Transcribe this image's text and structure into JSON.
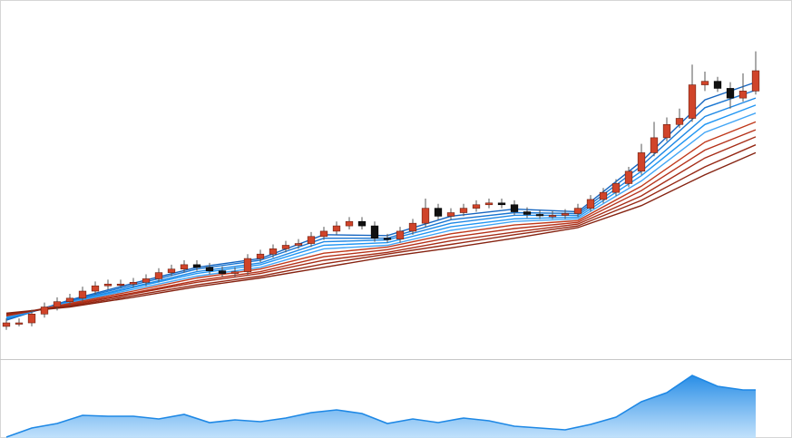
{
  "chart_data": [
    {
      "type": "candlestick",
      "xlim": [
        0,
        59
      ],
      "ylim": [
        0,
        395
      ],
      "up_color": "#d0442a",
      "down_color": "#111111",
      "open": [
        33,
        37,
        37,
        47,
        55,
        61,
        65,
        73,
        79,
        81,
        81,
        83,
        87,
        94,
        98,
        103,
        100,
        96,
        93,
        95,
        110,
        115,
        121,
        125,
        127,
        135,
        141,
        147,
        152,
        147,
        133,
        132,
        141,
        150,
        167,
        158,
        162,
        167,
        171,
        173,
        171,
        163,
        160,
        159,
        159,
        161,
        167,
        177,
        185,
        195,
        209,
        230,
        247,
        262,
        269,
        307,
        311,
        303,
        292,
        300
      ],
      "high": [
        42,
        42,
        52,
        60,
        66,
        70,
        78,
        84,
        86,
        86,
        88,
        92,
        99,
        103,
        108,
        108,
        105,
        101,
        100,
        115,
        120,
        126,
        130,
        132,
        140,
        146,
        152,
        157,
        157,
        152,
        138,
        146,
        155,
        178,
        172,
        167,
        172,
        176,
        178,
        178,
        176,
        168,
        165,
        164,
        166,
        172,
        182,
        190,
        200,
        214,
        240,
        265,
        270,
        280,
        330,
        322,
        316,
        310,
        320,
        345
      ],
      "low": [
        29,
        33,
        33,
        43,
        51,
        57,
        61,
        69,
        75,
        77,
        77,
        79,
        83,
        90,
        94,
        96,
        92,
        89,
        89,
        91,
        106,
        111,
        117,
        121,
        123,
        131,
        137,
        143,
        143,
        129,
        128,
        128,
        137,
        146,
        154,
        154,
        158,
        163,
        167,
        167,
        159,
        156,
        155,
        155,
        155,
        157,
        163,
        173,
        181,
        191,
        205,
        226,
        243,
        258,
        265,
        300,
        299,
        280,
        288,
        296
      ],
      "close": [
        37,
        37,
        47,
        55,
        61,
        65,
        73,
        79,
        81,
        81,
        83,
        87,
        94,
        98,
        103,
        100,
        96,
        93,
        95,
        110,
        115,
        121,
        125,
        127,
        135,
        141,
        147,
        152,
        147,
        133,
        132,
        141,
        150,
        167,
        158,
        162,
        167,
        171,
        173,
        171,
        163,
        160,
        159,
        159,
        161,
        167,
        177,
        185,
        195,
        209,
        230,
        247,
        262,
        269,
        307,
        311,
        303,
        292,
        300,
        323
      ],
      "series": [
        {
          "color": "#1565c0",
          "x": [
            0,
            5,
            10,
            15,
            20,
            25,
            30,
            35,
            40,
            45,
            50,
            55,
            59
          ],
          "values": [
            40,
            63,
            82,
            100,
            110,
            137,
            136,
            158,
            166,
            163,
            220,
            290,
            310
          ]
        },
        {
          "color": "#1976d2",
          "x": [
            0,
            5,
            10,
            15,
            20,
            25,
            30,
            35,
            40,
            45,
            50,
            55,
            59
          ],
          "values": [
            41,
            62,
            80,
            98,
            108,
            133,
            133,
            154,
            162,
            161,
            215,
            281,
            301
          ]
        },
        {
          "color": "#1e88e5",
          "x": [
            0,
            5,
            10,
            15,
            20,
            25,
            30,
            35,
            40,
            45,
            50,
            55,
            59
          ],
          "values": [
            42,
            61,
            78,
            95,
            105,
            129,
            131,
            150,
            159,
            159,
            209,
            271,
            292
          ]
        },
        {
          "color": "#2196f3",
          "x": [
            0,
            5,
            10,
            15,
            20,
            25,
            30,
            35,
            40,
            45,
            50,
            55,
            59
          ],
          "values": [
            43,
            60,
            77,
            93,
            103,
            125,
            128,
            146,
            155,
            157,
            204,
            262,
            284
          ]
        },
        {
          "color": "#42a5f5",
          "x": [
            0,
            5,
            10,
            15,
            20,
            25,
            30,
            35,
            40,
            45,
            50,
            55,
            59
          ],
          "values": [
            44,
            60,
            75,
            90,
            100,
            121,
            125,
            142,
            152,
            155,
            198,
            253,
            275
          ]
        },
        {
          "color": "#c0391b",
          "x": [
            0,
            5,
            10,
            15,
            20,
            25,
            30,
            35,
            40,
            45,
            50,
            55,
            59
          ],
          "values": [
            45,
            59,
            73,
            88,
            98,
            116,
            123,
            138,
            148,
            153,
            192,
            242,
            265
          ]
        },
        {
          "color": "#b5321a",
          "x": [
            0,
            5,
            10,
            15,
            20,
            25,
            30,
            35,
            40,
            45,
            50,
            55,
            59
          ],
          "values": [
            45,
            58,
            71,
            85,
            95,
            112,
            120,
            134,
            144,
            151,
            187,
            233,
            256
          ]
        },
        {
          "color": "#a62d17",
          "x": [
            0,
            5,
            10,
            15,
            20,
            25,
            30,
            35,
            40,
            45,
            50,
            55,
            59
          ],
          "values": [
            46,
            57,
            70,
            83,
            93,
            108,
            117,
            130,
            140,
            149,
            181,
            224,
            248
          ]
        },
        {
          "color": "#962814",
          "x": [
            0,
            5,
            10,
            15,
            20,
            25,
            30,
            35,
            40,
            45,
            50,
            55,
            59
          ],
          "values": [
            47,
            56,
            68,
            80,
            90,
            104,
            115,
            126,
            137,
            147,
            176,
            214,
            239
          ]
        },
        {
          "color": "#862311",
          "x": [
            0,
            5,
            10,
            15,
            20,
            25,
            30,
            35,
            40,
            45,
            50,
            55,
            59
          ],
          "values": [
            48,
            55,
            66,
            78,
            88,
            100,
            112,
            122,
            133,
            145,
            170,
            205,
            230
          ]
        }
      ]
    },
    {
      "type": "area",
      "xlim": [
        0,
        59
      ],
      "ylim": [
        0,
        85
      ],
      "color": "#1e88e5",
      "x": [
        0,
        2,
        4,
        6,
        8,
        10,
        12,
        14,
        16,
        18,
        20,
        22,
        24,
        26,
        28,
        30,
        32,
        34,
        36,
        38,
        40,
        42,
        44,
        46,
        48,
        50,
        52,
        54,
        56,
        58,
        59
      ],
      "values": [
        1,
        11,
        16,
        25,
        24,
        24,
        21,
        26,
        17,
        20,
        18,
        22,
        28,
        31,
        27,
        16,
        21,
        17,
        22,
        19,
        13,
        11,
        9,
        15,
        23,
        40,
        50,
        69,
        57,
        53,
        53
      ]
    }
  ]
}
